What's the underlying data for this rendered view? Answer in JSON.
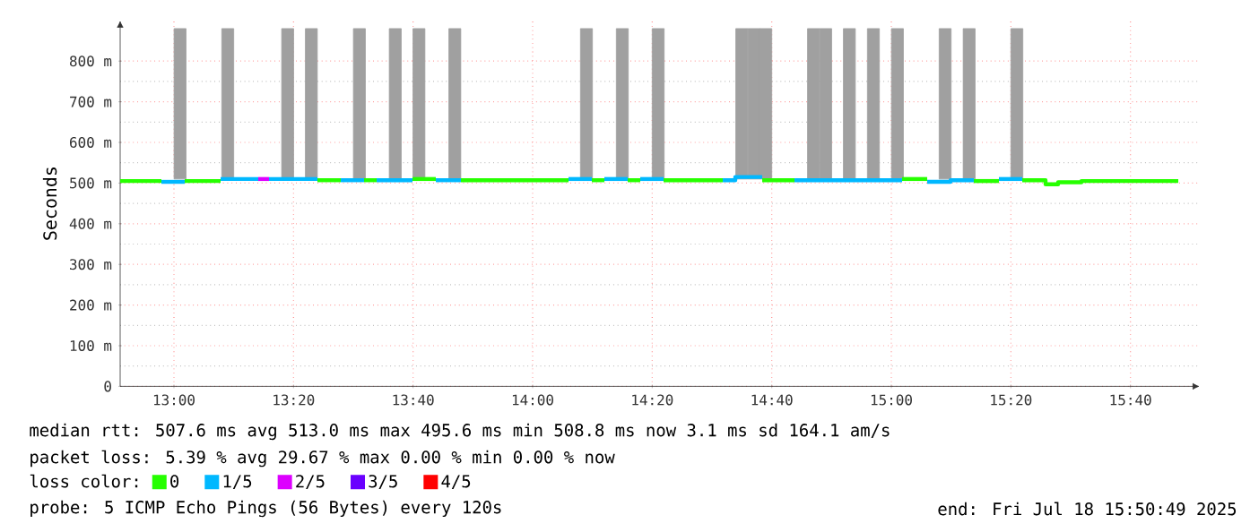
{
  "chart_data": {
    "type": "step",
    "ylabel": "Seconds",
    "legend_title": "loss color:",
    "series": [
      {
        "type": "bar",
        "color": "#a0a0a0",
        "x": [
          13.017,
          13.15,
          13.317,
          13.383,
          13.517,
          13.617,
          13.683,
          13.783,
          14.15,
          14.25,
          14.35,
          14.583,
          14.617,
          14.65,
          14.783,
          14.817,
          14.883,
          14.95,
          15.017,
          15.15,
          15.217,
          15.35
        ],
        "base": [
          510,
          510,
          510,
          510,
          510,
          510,
          510,
          510,
          510,
          510,
          510,
          510,
          510,
          510,
          510,
          510,
          510,
          510,
          510,
          510,
          510,
          510
        ],
        "values": [
          370,
          370,
          370,
          370,
          370,
          370,
          370,
          370,
          370,
          370,
          370,
          370,
          370,
          370,
          370,
          370,
          370,
          370,
          370,
          370,
          370,
          370
        ]
      },
      {
        "name": "0",
        "color": "#26ff00",
        "x": [
          12.85,
          12.965
        ],
        "values": [
          505,
          505
        ]
      },
      {
        "name": "1/5",
        "color": "#00b8ff",
        "x": [
          12.965,
          13.03
        ],
        "values": [
          503,
          503
        ]
      },
      {
        "name": "2/5",
        "color": "#dd00ff",
        "x": [
          13.235,
          13.265
        ],
        "values": [
          510,
          510
        ]
      },
      {
        "name": "3/5",
        "color": "#6a00ff"
      },
      {
        "name": "4/5",
        "color": "#ff0000"
      },
      {
        "color": "#26ff00",
        "x": [
          13.03,
          13.13
        ],
        "values": [
          505,
          505
        ]
      },
      {
        "color": "#26ff00",
        "x": [
          13.4,
          13.465
        ],
        "values": [
          507,
          507
        ]
      },
      {
        "color": "#26ff00",
        "x": [
          13.53,
          13.565
        ],
        "values": [
          507,
          507
        ]
      },
      {
        "color": "#26ff00",
        "x": [
          13.665,
          13.73
        ],
        "values": [
          510,
          510
        ]
      },
      {
        "color": "#26ff00",
        "x": [
          13.8,
          14.1
        ],
        "values": [
          507,
          507
        ]
      },
      {
        "color": "#26ff00",
        "x": [
          14.165,
          14.2
        ],
        "values": [
          507,
          507
        ]
      },
      {
        "color": "#26ff00",
        "x": [
          14.265,
          14.3
        ],
        "values": [
          507,
          507
        ]
      },
      {
        "color": "#26ff00",
        "x": [
          14.365,
          14.53
        ],
        "values": [
          507,
          507
        ]
      },
      {
        "color": "#26ff00",
        "x": [
          14.64,
          14.73
        ],
        "values": [
          507,
          507
        ]
      },
      {
        "color": "#26ff00",
        "x": [
          15.03,
          15.1
        ],
        "values": [
          510,
          510
        ]
      },
      {
        "color": "#26ff00",
        "x": [
          15.23,
          15.3
        ],
        "values": [
          505,
          505
        ]
      },
      {
        "color": "#26ff00",
        "x": [
          15.365,
          15.43,
          15.465,
          15.53,
          15.8
        ],
        "values": [
          507,
          497,
          502,
          505,
          505
        ]
      },
      {
        "color": "#00b8ff",
        "x": [
          13.13,
          13.235
        ],
        "values": [
          510,
          510
        ]
      },
      {
        "color": "#00b8ff",
        "x": [
          13.265,
          13.4
        ],
        "values": [
          510,
          510
        ]
      },
      {
        "color": "#00b8ff",
        "x": [
          13.465,
          13.53
        ],
        "values": [
          507,
          507
        ]
      },
      {
        "color": "#00b8ff",
        "x": [
          13.565,
          13.665
        ],
        "values": [
          507,
          507
        ]
      },
      {
        "color": "#00b8ff",
        "x": [
          13.73,
          13.8
        ],
        "values": [
          507,
          507
        ]
      },
      {
        "color": "#00b8ff",
        "x": [
          14.1,
          14.165
        ],
        "values": [
          510,
          510
        ]
      },
      {
        "color": "#00b8ff",
        "x": [
          14.2,
          14.265
        ],
        "values": [
          510,
          510
        ]
      },
      {
        "color": "#00b8ff",
        "x": [
          14.3,
          14.365
        ],
        "values": [
          510,
          510
        ]
      },
      {
        "color": "#00b8ff",
        "x": [
          14.53,
          14.565,
          14.64
        ],
        "values": [
          507,
          515,
          515
        ]
      },
      {
        "color": "#00b8ff",
        "x": [
          14.73,
          15.03
        ],
        "values": [
          507,
          507
        ]
      },
      {
        "color": "#00b8ff",
        "x": [
          15.1,
          15.165,
          15.23
        ],
        "values": [
          503,
          507,
          507
        ]
      },
      {
        "color": "#00b8ff",
        "x": [
          15.3,
          15.365
        ],
        "values": [
          510,
          510
        ]
      }
    ],
    "xlim": [
      12.85,
      15.86
    ],
    "xticks": [
      {
        "value": 13,
        "label": "13:00"
      },
      {
        "value": 13.3333,
        "label": "13:20"
      },
      {
        "value": 13.6667,
        "label": "13:40"
      },
      {
        "value": 14,
        "label": "14:00"
      },
      {
        "value": 14.3333,
        "label": "14:20"
      },
      {
        "value": 14.6667,
        "label": "14:40"
      },
      {
        "value": 15,
        "label": "15:00"
      },
      {
        "value": 15.3333,
        "label": "15:20"
      },
      {
        "value": 15.6667,
        "label": "15:40"
      }
    ],
    "ylim": [
      0,
      900
    ],
    "yticks": [
      {
        "value": 0,
        "label": "0"
      },
      {
        "value": 100,
        "label": "100 m"
      },
      {
        "value": 200,
        "label": "200 m"
      },
      {
        "value": 300,
        "label": "300 m"
      },
      {
        "value": 400,
        "label": "400 m"
      },
      {
        "value": 500,
        "label": "500 m"
      },
      {
        "value": 600,
        "label": "600 m"
      },
      {
        "value": 700,
        "label": "700 m"
      },
      {
        "value": 800,
        "label": "800 m"
      }
    ],
    "grid": true,
    "legend": "bottom",
    "annotations": [
      "median rtt: 507.6 ms avg 513.0 ms max 495.6 ms min 508.8 ms now 3.1 ms sd 164.1 am/s",
      "packet loss: 5.39 % avg 29.67 % max 0.00 % min 0.00 % now",
      "probe: 5 ICMP Echo Pings (56 Bytes) every 120s",
      "end: Fri Jul 18 15:50:49 2025"
    ]
  }
}
